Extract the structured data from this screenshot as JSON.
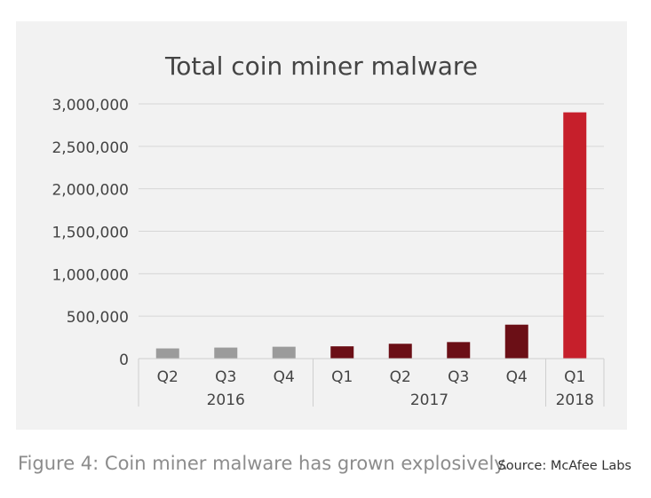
{
  "chart_data": {
    "type": "bar",
    "title": "Total coin miner malware",
    "xlabel": "",
    "ylabel": "",
    "ylim": [
      0,
      3000000
    ],
    "yticks": [
      0,
      500000,
      1000000,
      1500000,
      2000000,
      2500000,
      3000000
    ],
    "ytick_labels": [
      "0",
      "500,000",
      "1,000,000",
      "1,500,000",
      "2,000,000",
      "2,500,000",
      "3,000,000"
    ],
    "grid": true,
    "categories": [
      "Q2",
      "Q3",
      "Q4",
      "Q1",
      "Q2",
      "Q3",
      "Q4",
      "Q1"
    ],
    "values": [
      120000,
      130000,
      140000,
      145000,
      175000,
      195000,
      400000,
      2900000
    ],
    "groups": [
      {
        "label": "2016",
        "count": 3
      },
      {
        "label": "2017",
        "count": 4
      },
      {
        "label": "2018",
        "count": 1
      }
    ],
    "bar_colors": [
      "#9b9b9b",
      "#9b9b9b",
      "#9b9b9b",
      "#6b0f16",
      "#6b0f16",
      "#6b0f16",
      "#6b0f16",
      "#c61f2b"
    ]
  },
  "caption": "Figure 4: Coin miner malware has grown explosively.",
  "source": "Source: McAfee Labs"
}
